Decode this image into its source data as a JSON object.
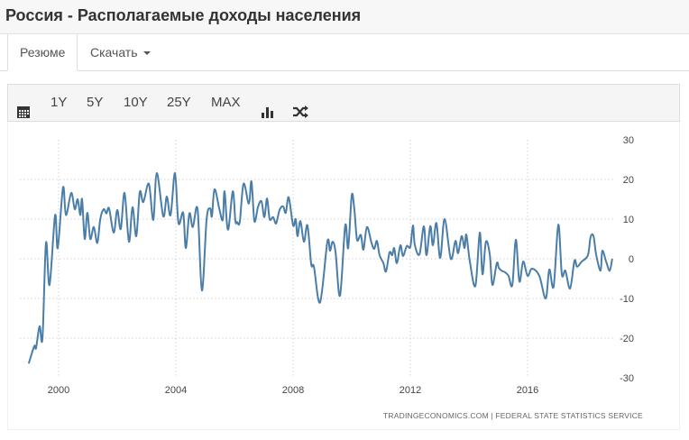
{
  "header": {
    "title": "Россия - Располагаемые доходы населения"
  },
  "tabs": [
    {
      "label": "Резюме",
      "active": true
    },
    {
      "label": "Скачать"
    }
  ],
  "toolbar": {
    "calendar_icon": "calendar-icon",
    "ranges": [
      "1Y",
      "5Y",
      "10Y",
      "25Y",
      "MAX"
    ],
    "bar_icon": "bar-chart-icon",
    "shuffle_icon": "shuffle-icon"
  },
  "source": "TRADINGECONOMICS.COM  |  FEDERAL  STATE  STATISTICS  SERVICE",
  "chart_data": {
    "type": "line",
    "title": "",
    "xlabel": "",
    "ylabel": "",
    "ylim": [
      -30,
      30
    ],
    "yticks": [
      "30",
      "20",
      "10",
      "0",
      "-10",
      "-20",
      "-30"
    ],
    "xticks": [
      "2000",
      "2004",
      "2008",
      "2012",
      "2016"
    ],
    "grid": true,
    "line_color": "#4a7ea8",
    "x": [
      1998.98,
      1999.17,
      1999.23,
      1999.35,
      1999.45,
      1999.57,
      1999.69,
      1999.88,
      1999.97,
      2000.15,
      2000.25,
      2000.43,
      2000.55,
      2000.65,
      2000.74,
      2000.8,
      2000.89,
      2000.98,
      2001.08,
      2001.2,
      2001.32,
      2001.42,
      2001.54,
      2001.63,
      2001.72,
      2001.88,
      2002.0,
      2002.12,
      2002.25,
      2002.4,
      2002.52,
      2002.65,
      2002.77,
      2002.89,
      2003.08,
      2003.23,
      2003.35,
      2003.57,
      2003.69,
      2003.82,
      2003.97,
      2004.09,
      2004.25,
      2004.34,
      2004.46,
      2004.58,
      2004.74,
      2004.89,
      2005.05,
      2005.17,
      2005.23,
      2005.32,
      2005.48,
      2005.6,
      2005.66,
      2005.78,
      2005.94,
      2006.03,
      2006.09,
      2006.18,
      2006.31,
      2006.49,
      2006.58,
      2006.68,
      2006.8,
      2006.92,
      2007.02,
      2007.11,
      2007.2,
      2007.32,
      2007.42,
      2007.54,
      2007.66,
      2007.75,
      2007.85,
      2008.0,
      2008.09,
      2008.15,
      2008.25,
      2008.37,
      2008.49,
      2008.62,
      2008.71,
      2008.92,
      2009.17,
      2009.26,
      2009.35,
      2009.45,
      2009.6,
      2009.78,
      2009.88,
      2010.0,
      2010.09,
      2010.18,
      2010.31,
      2010.4,
      2010.52,
      2010.68,
      2010.77,
      2010.86,
      2010.95,
      2011.08,
      2011.17,
      2011.29,
      2011.38,
      2011.45,
      2011.54,
      2011.66,
      2011.75,
      2011.88,
      2012.0,
      2012.09,
      2012.15,
      2012.31,
      2012.46,
      2012.55,
      2012.68,
      2012.77,
      2012.89,
      2013.02,
      2013.17,
      2013.38,
      2013.54,
      2013.63,
      2013.75,
      2013.85,
      2013.91,
      2014.03,
      2014.22,
      2014.37,
      2014.46,
      2014.58,
      2014.71,
      2014.8,
      2014.95,
      2015.02,
      2015.11,
      2015.23,
      2015.35,
      2015.48,
      2015.6,
      2015.72,
      2015.85,
      2016.0,
      2016.15,
      2016.4,
      2016.62,
      2016.74,
      2016.89,
      2017.05,
      2017.17,
      2017.29,
      2017.45,
      2017.6,
      2017.69,
      2017.85,
      2018.06,
      2018.15,
      2018.25,
      2018.34,
      2018.49,
      2018.55,
      2018.68,
      2018.8,
      2018.89
    ],
    "y": [
      -26.4,
      -22,
      -22.5,
      -17,
      -20,
      4,
      -6.6,
      11,
      2.7,
      18,
      11,
      16.6,
      12.5,
      15,
      11,
      15,
      5,
      11.6,
      5,
      8,
      4,
      10,
      12.5,
      11.4,
      12.7,
      6.6,
      12.3,
      7.5,
      16.6,
      4.3,
      13,
      5.7,
      16.8,
      14.3,
      18.9,
      9.8,
      21.6,
      10.7,
      15.7,
      11,
      21.6,
      9,
      11.6,
      2.7,
      11.4,
      8,
      12.5,
      -8,
      10,
      12.7,
      10.7,
      17.5,
      12.7,
      9.8,
      17,
      7.3,
      17,
      9.5,
      9.3,
      9.3,
      18.9,
      13.9,
      19.5,
      9.5,
      13,
      14.5,
      10.5,
      15.2,
      10,
      10.5,
      8.9,
      12.3,
      13.2,
      11.6,
      15.5,
      8.4,
      10,
      5.7,
      9.5,
      4.3,
      8.4,
      -1.4,
      -2,
      -11,
      4.3,
      2,
      4.3,
      1.6,
      -9.3,
      8.4,
      2.7,
      16,
      12.5,
      4.8,
      6,
      2.3,
      8,
      3.9,
      2.5,
      4.5,
      0.9,
      -1.1,
      -3.2,
      1.6,
      0.9,
      2.7,
      -1.1,
      3.4,
      0.7,
      3.2,
      3,
      8.4,
      3.6,
      1.1,
      8.2,
      0.9,
      8.2,
      3.4,
      9,
      0.2,
      10,
      0,
      4.5,
      1.4,
      5.7,
      2.7,
      6.1,
      -0.7,
      -6.8,
      6.6,
      -3.9,
      4.3,
      1.1,
      -6.6,
      -1.1,
      -2.3,
      -3,
      -3.4,
      -4.3,
      -6.6,
      4.8,
      -5.7,
      -0.7,
      -4.3,
      -2.5,
      -4.3,
      -10,
      -2.7,
      -7,
      8.6,
      -3.9,
      -3,
      -7.5,
      -0.5,
      -2,
      -0.7,
      0.9,
      5.5,
      5.7,
      1.1,
      -3,
      2,
      -0.7,
      -3,
      0
    ]
  }
}
